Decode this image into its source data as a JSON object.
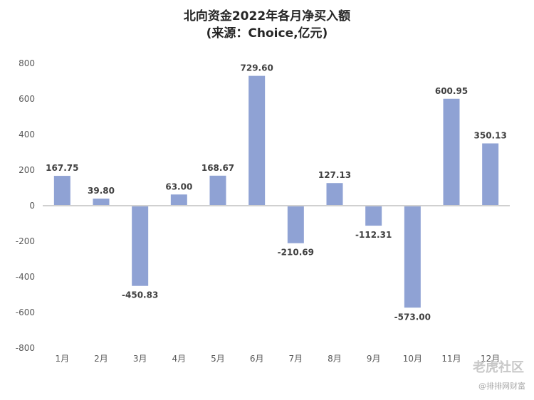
{
  "chart_data": {
    "type": "bar",
    "title": "北向资金2022年各月净买入额",
    "subtitle": "(来源：Choice,亿元)",
    "categories": [
      "1月",
      "2月",
      "3月",
      "4月",
      "5月",
      "6月",
      "7月",
      "8月",
      "9月",
      "10月",
      "11月",
      "12月"
    ],
    "values": [
      167.75,
      39.8,
      -450.83,
      63.0,
      168.67,
      729.6,
      -210.69,
      127.13,
      -112.31,
      -573.0,
      600.95,
      350.13
    ],
    "data_labels": [
      "167.75",
      "39.80",
      "-450.83",
      "63.00",
      "168.67",
      "729.60",
      "-210.69",
      "127.13",
      "-112.31",
      "-573.00",
      "600.95",
      "350.13"
    ],
    "ylim": [
      -800,
      800
    ],
    "yticks": [
      800,
      600,
      400,
      200,
      0,
      -200,
      -400,
      -600,
      -800
    ],
    "xlabel": "",
    "ylabel": "",
    "grid": false,
    "legend": "none",
    "bar_color": "#8fa2d4"
  },
  "watermark": {
    "main": "老虎社区",
    "sub": "@排排网财富"
  }
}
